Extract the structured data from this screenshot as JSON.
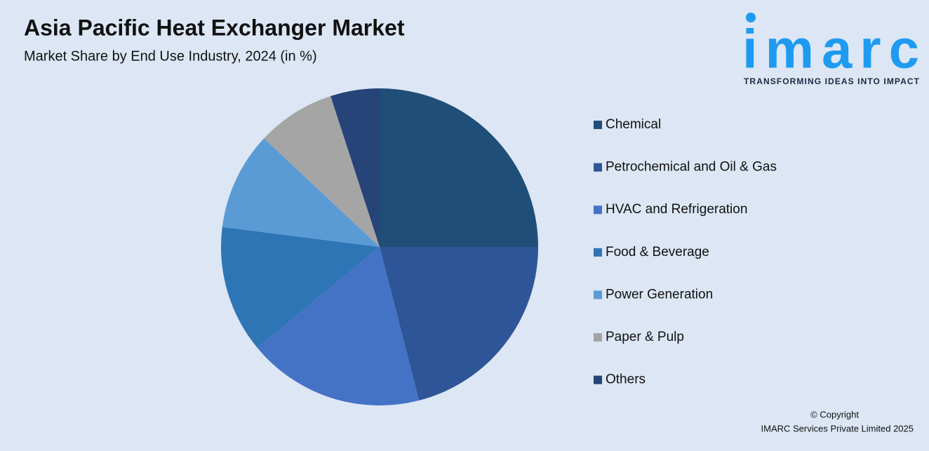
{
  "chart_data": {
    "type": "pie",
    "title": "Asia Pacific Heat Exchanger Market",
    "subtitle": "Market Share by End Use Industry, 2024 (in %)",
    "categories": [
      "Chemical",
      "Petrochemical and Oil & Gas",
      "HVAC and Refrigeration",
      "Food & Beverage",
      "Power Generation",
      "Paper & Pulp",
      "Others"
    ],
    "values": [
      25,
      21,
      18,
      13,
      10,
      8,
      5
    ],
    "colors": [
      "#1f4e79",
      "#2e5597",
      "#4472c4",
      "#2e75b6",
      "#5b9bd5",
      "#a5a5a5",
      "#264478"
    ],
    "legend": "right"
  },
  "logo": {
    "name": "imarc",
    "tagline": "TRANSFORMING IDEAS INTO IMPACT"
  },
  "footer": {
    "copyright": "© Copyright",
    "company": "IMARC Services Private Limited 2025"
  }
}
